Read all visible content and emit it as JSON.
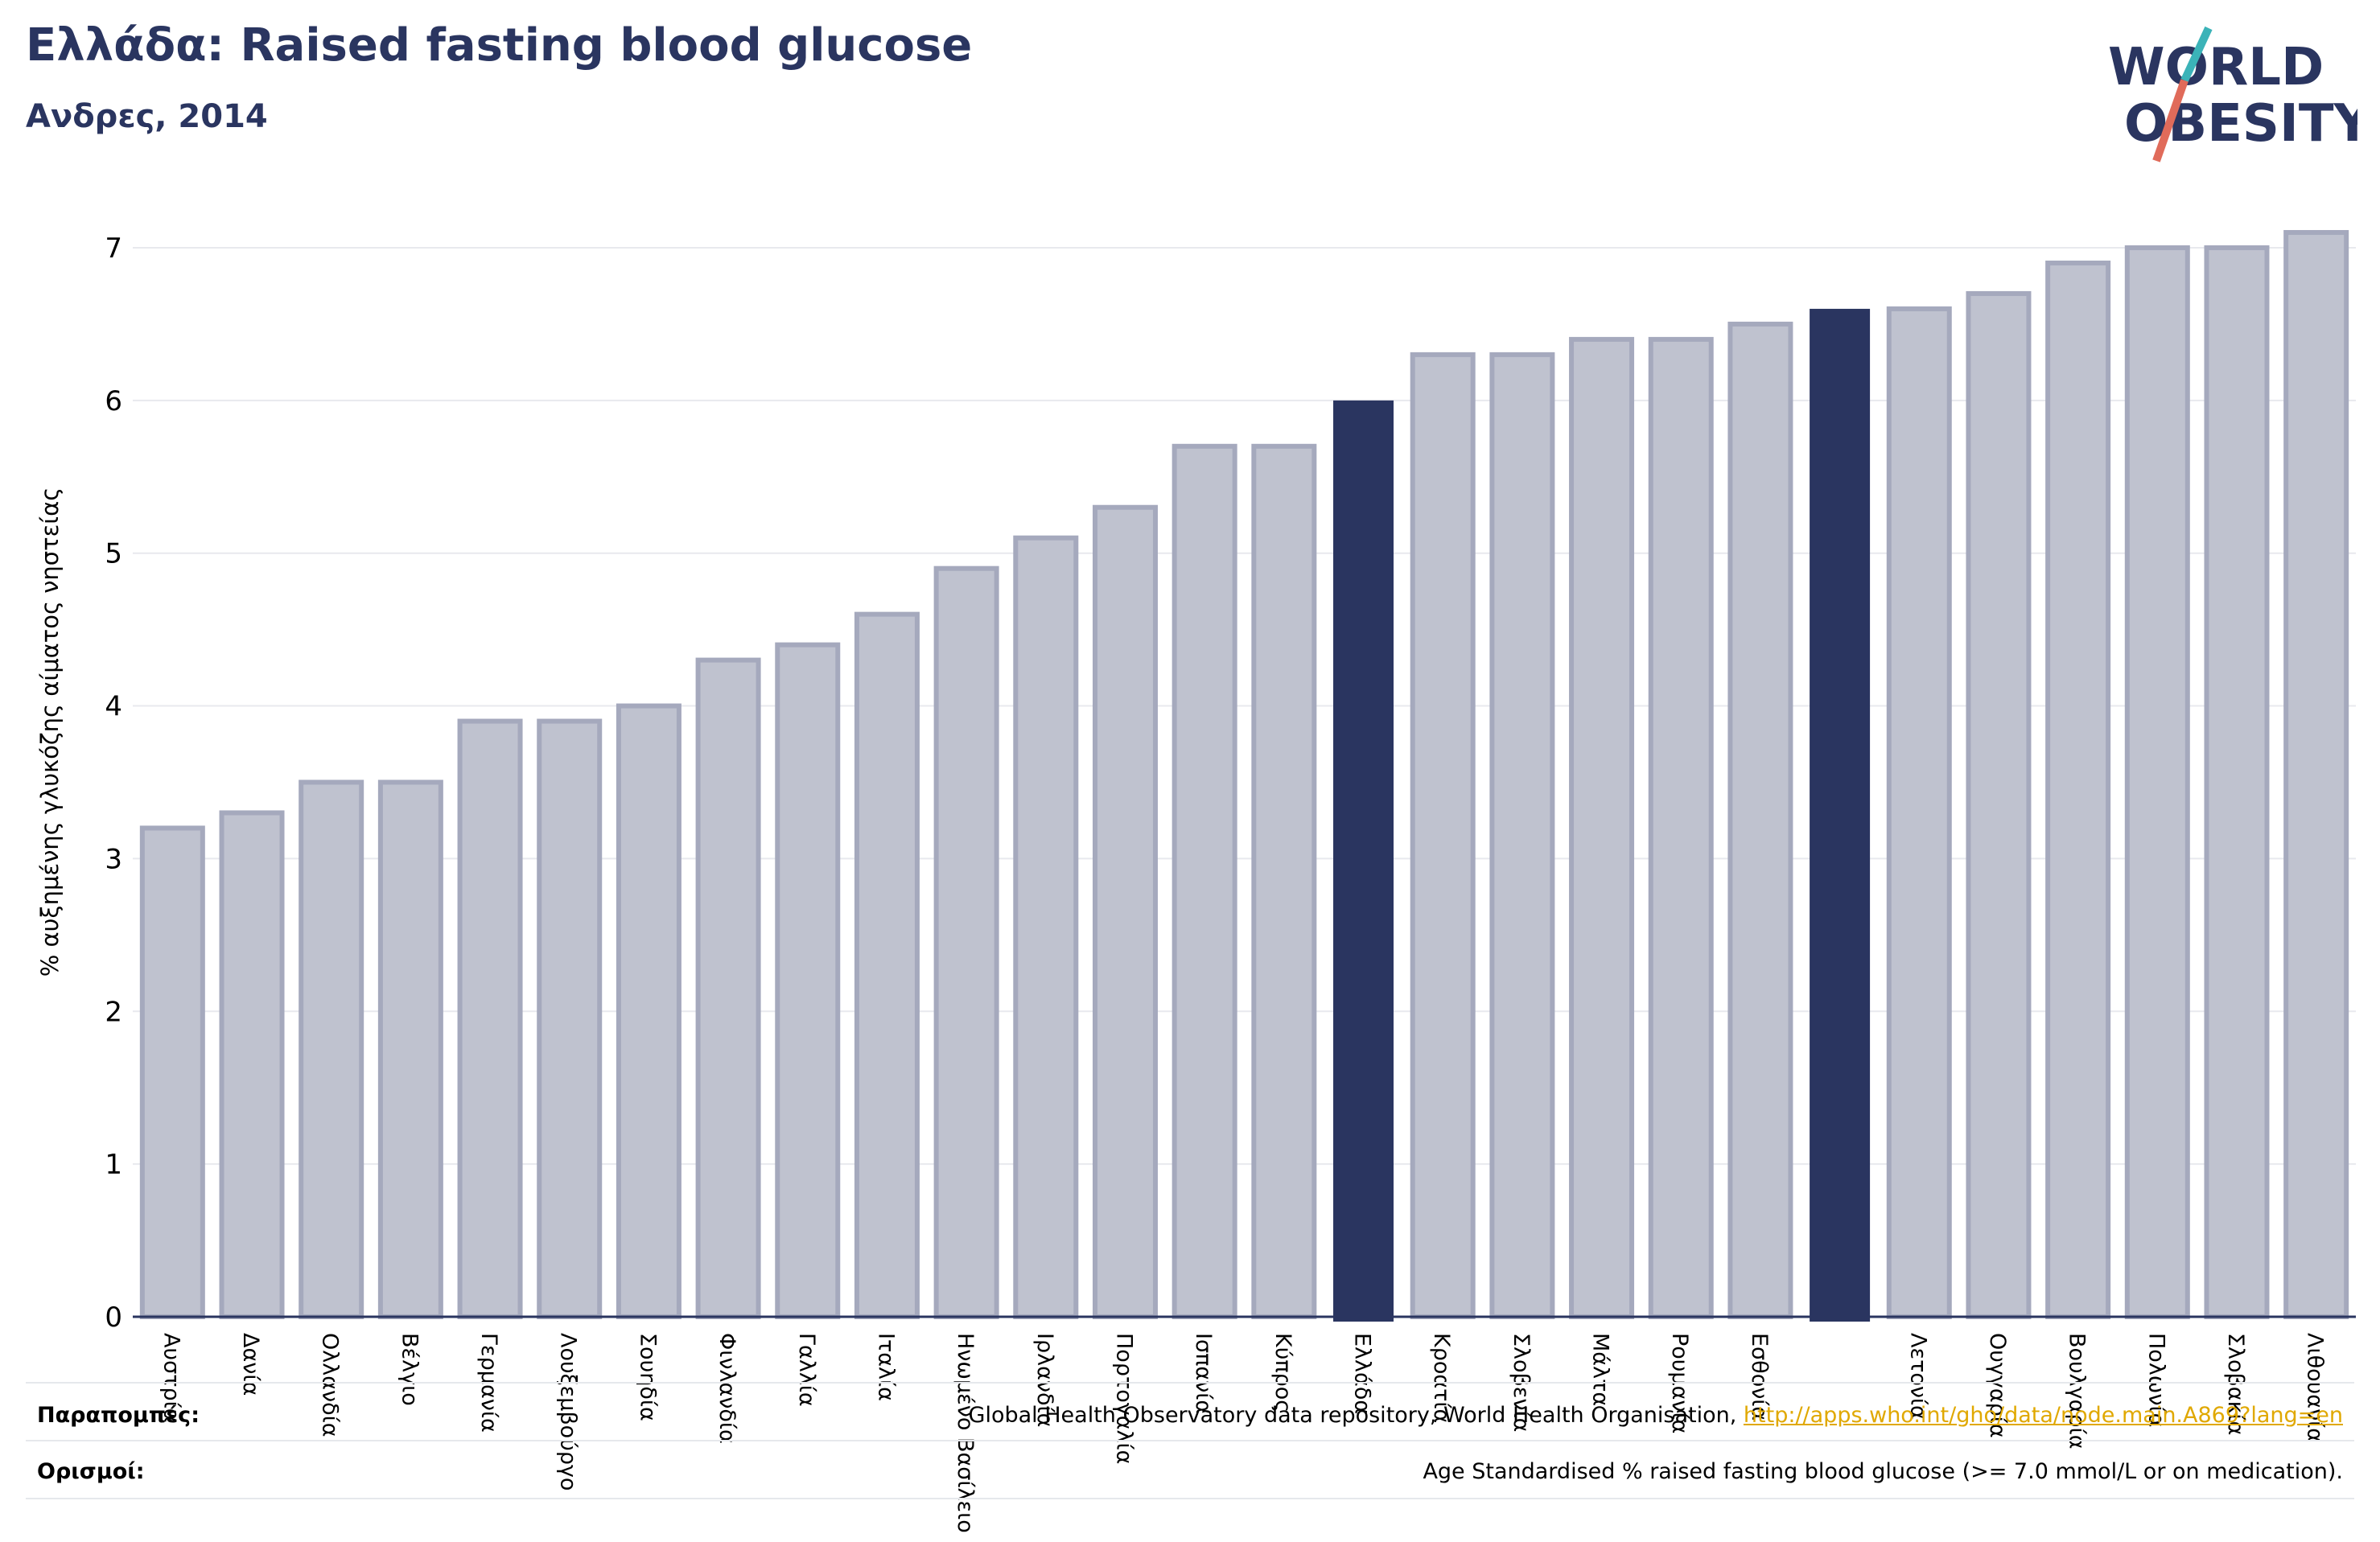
{
  "header": {
    "title": "Ελλάδα: Raised fasting blood glucose",
    "subtitle": "Ανδρες, 2014"
  },
  "logo": {
    "line1": "WORLD",
    "line2": "OBESITY"
  },
  "footer": {
    "refs_label": "Παραπομπές:",
    "refs_text": "Global Health Observatory data repository, World Health Organisation,",
    "refs_link": "http://apps.who.int/gho/data/node.main.A869?lang=en",
    "defs_label": "Ορισμοί:",
    "defs_text": "Age Standardised % raised fasting blood glucose (>= 7.0 mmol/L or on medication)."
  },
  "colors": {
    "bar": "#bfc2cf",
    "bar_border": "#a5a9bd",
    "highlight": "#2a3560",
    "grid": "#e8e9ee"
  },
  "chart_data": {
    "type": "bar",
    "ylabel": "% αυξημένης γλυκόζης αίματος νηστείας",
    "xlabel": "",
    "ylim": [
      0,
      7.2
    ],
    "yticks": [
      0,
      1,
      2,
      3,
      4,
      5,
      6,
      7
    ],
    "grid": true,
    "categories": [
      "Αυστρία",
      "Δανία",
      "Ολλανδία",
      "Βέλγιο",
      "Γερμανία",
      "Λουξεμβούργο",
      "Σουηδία",
      "Φινλανδία",
      "Γαλλία",
      "Ιταλία",
      "Ηνωμένο Βασίλειο",
      "Ιρλανδία",
      "Πορτογαλία",
      "Ισπανία",
      "Κύπρος",
      "Ελλάδα",
      "Κροατία",
      "Σλοβενία",
      "Μάλτα",
      "Ρουμανία",
      "Εσθονία",
      "",
      "Λετονία",
      "Ουγγαρία",
      "Βουλγαρία",
      "Πολωνία",
      "Σλοβακία",
      "Λιθουανία"
    ],
    "values": [
      3.2,
      3.3,
      3.5,
      3.5,
      3.9,
      3.9,
      4.0,
      4.3,
      4.4,
      4.6,
      4.9,
      5.1,
      5.3,
      5.7,
      5.7,
      6.0,
      6.3,
      6.3,
      6.4,
      6.4,
      6.5,
      6.6,
      6.6,
      6.7,
      6.9,
      7.0,
      7.0,
      7.1
    ],
    "highlight": [
      15,
      21
    ]
  }
}
